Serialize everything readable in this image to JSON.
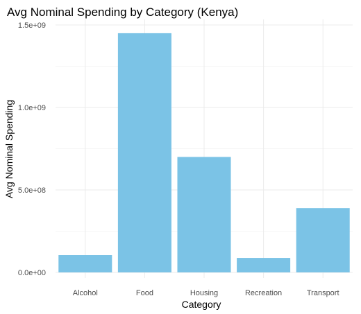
{
  "chart_data": {
    "type": "bar",
    "title": "Avg Nominal Spending by Category (Kenya)",
    "xlabel": "Category",
    "ylabel": "Avg Nominal Spending",
    "categories": [
      "Alcohol",
      "Food",
      "Housing",
      "Recreation",
      "Transport"
    ],
    "values": [
      105000000,
      1450000000,
      700000000,
      88000000,
      390000000
    ],
    "ylim": [
      0,
      1500000000
    ],
    "y_ticks": [
      0,
      500000000,
      1000000000,
      1500000000
    ],
    "y_tick_labels": [
      "0.0e+00",
      "5.0e+08",
      "1.0e+09",
      "1.5e+09"
    ],
    "grid": true,
    "colors": {
      "bar": "#7bc3e6",
      "grid_major": "#ebebeb",
      "grid_minor": "#f5f5f5"
    }
  }
}
